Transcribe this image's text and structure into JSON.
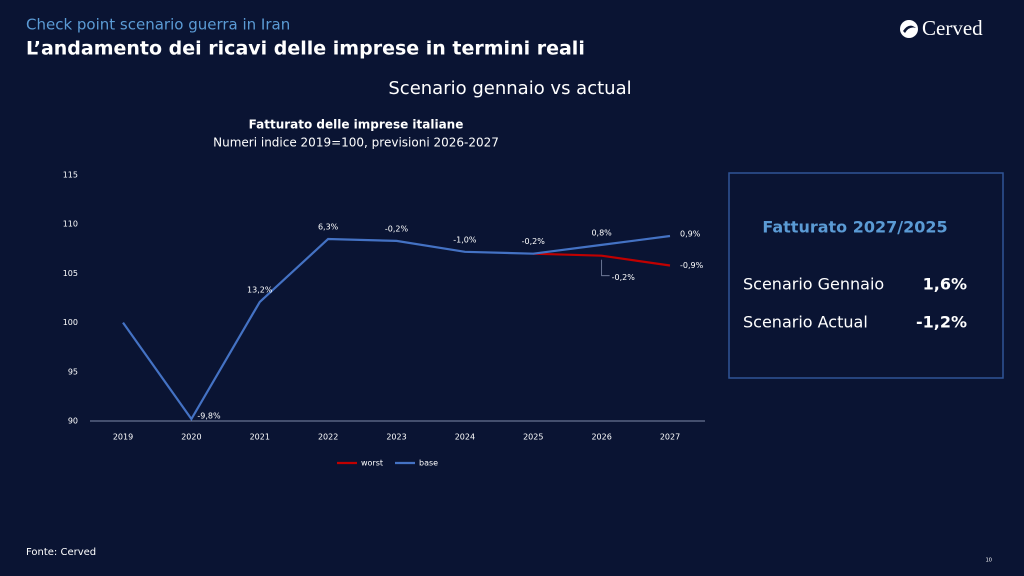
{
  "header": {
    "kicker": "Check point scenario guerra in Iran",
    "title": "L’andamento dei ricavi delle imprese in termini reali",
    "logo": "Cerved"
  },
  "section_title": "Scenario gennaio vs actual",
  "chart_data": {
    "type": "line",
    "title": "Fatturato delle imprese italiane",
    "subtitle": "Numeri indice 2019=100, previsioni 2026-2027",
    "categories": [
      "2019",
      "2020",
      "2021",
      "2022",
      "2023",
      "2024",
      "2025",
      "2026",
      "2027"
    ],
    "series": [
      {
        "name": "worst",
        "color": "#c00000",
        "values": [
          null,
          null,
          null,
          null,
          null,
          null,
          107.0,
          106.8,
          105.8
        ],
        "labels": [
          null,
          null,
          null,
          null,
          null,
          null,
          null,
          "-0,2%",
          "-0,9%"
        ]
      },
      {
        "name": "base",
        "color": "#4472c4",
        "values": [
          100,
          90.2,
          102.1,
          108.5,
          108.3,
          107.2,
          107.0,
          107.9,
          108.8
        ],
        "labels": [
          null,
          "-9,8%",
          "13,2%",
          "6,3%",
          "-0,2%",
          "-1,0%",
          "-0,2%",
          "0,8%",
          "0,9%"
        ]
      }
    ],
    "ylim": [
      90,
      115
    ],
    "yticks": [
      90,
      95,
      100,
      105,
      110,
      115
    ],
    "grid": false,
    "legend": "bottom"
  },
  "box": {
    "title": "Fatturato 2027/2025",
    "rows": [
      [
        "Scenario Gennaio",
        "1,6%"
      ],
      [
        "Scenario Actual",
        "-1,2%"
      ]
    ]
  },
  "source": "Fonte: Cerved",
  "page_number": "10"
}
